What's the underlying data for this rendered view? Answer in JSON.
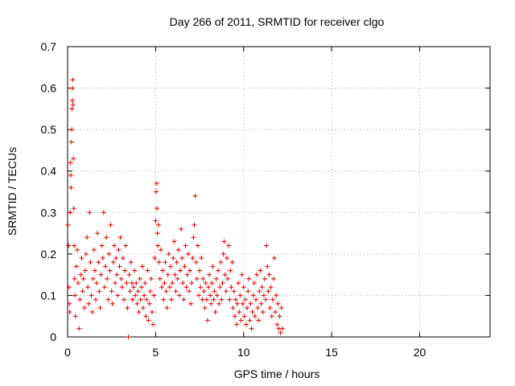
{
  "chart_data": {
    "type": "scatter",
    "title": "Day 266 of 2011, SRMTID for receiver clgo",
    "xlabel": "GPS time / hours",
    "ylabel": "SRMTID / TECUs",
    "xlim": [
      0,
      24
    ],
    "ylim": [
      0,
      0.7
    ],
    "xticks": [
      0,
      5,
      10,
      15,
      20
    ],
    "yticks": [
      0,
      0.1,
      0.2,
      0.3,
      0.4,
      0.5,
      0.6,
      0.7
    ],
    "grid": true,
    "colors": {
      "marker": "#e00000",
      "grid": "#a0a0a0",
      "axis": "#000000"
    },
    "marker": "plus",
    "series": [
      {
        "name": "SRMTID",
        "points": [
          [
            0.02,
            0.27
          ],
          [
            0.05,
            0.22
          ],
          [
            0.08,
            0.12
          ],
          [
            0.1,
            0.08
          ],
          [
            0.12,
            0.06
          ],
          [
            0.15,
            0.3
          ],
          [
            0.17,
            0.42
          ],
          [
            0.18,
            0.39
          ],
          [
            0.2,
            0.36
          ],
          [
            0.22,
            0.47
          ],
          [
            0.24,
            0.5
          ],
          [
            0.25,
            0.55
          ],
          [
            0.27,
            0.57
          ],
          [
            0.28,
            0.6
          ],
          [
            0.3,
            0.62
          ],
          [
            0.31,
            0.56
          ],
          [
            0.33,
            0.43
          ],
          [
            0.35,
            0.31
          ],
          [
            0.37,
            0.22
          ],
          [
            0.4,
            0.14
          ],
          [
            0.42,
            0.1
          ],
          [
            0.45,
            0.05
          ],
          [
            0.5,
            0.17
          ],
          [
            0.55,
            0.21
          ],
          [
            0.6,
            0.13
          ],
          [
            0.65,
            0.02
          ],
          [
            0.7,
            0.09
          ],
          [
            0.75,
            0.15
          ],
          [
            0.8,
            0.19
          ],
          [
            0.85,
            0.11
          ],
          [
            0.9,
            0.14
          ],
          [
            0.95,
            0.07
          ],
          [
            1.0,
            0.16
          ],
          [
            1.05,
            0.2
          ],
          [
            1.1,
            0.24
          ],
          [
            1.15,
            0.12
          ],
          [
            1.2,
            0.08
          ],
          [
            1.25,
            0.3
          ],
          [
            1.3,
            0.18
          ],
          [
            1.35,
            0.1
          ],
          [
            1.4,
            0.06
          ],
          [
            1.45,
            0.14
          ],
          [
            1.5,
            0.21
          ],
          [
            1.55,
            0.16
          ],
          [
            1.6,
            0.09
          ],
          [
            1.65,
            0.13
          ],
          [
            1.7,
            0.25
          ],
          [
            1.75,
            0.18
          ],
          [
            1.8,
            0.11
          ],
          [
            1.85,
            0.07
          ],
          [
            1.9,
            0.15
          ],
          [
            1.95,
            0.22
          ],
          [
            2.0,
            0.19
          ],
          [
            2.05,
            0.3
          ],
          [
            2.1,
            0.12
          ],
          [
            2.15,
            0.17
          ],
          [
            2.2,
            0.24
          ],
          [
            2.25,
            0.14
          ],
          [
            2.3,
            0.09
          ],
          [
            2.35,
            0.2
          ],
          [
            2.4,
            0.16
          ],
          [
            2.45,
            0.27
          ],
          [
            2.5,
            0.11
          ],
          [
            2.55,
            0.08
          ],
          [
            2.6,
            0.18
          ],
          [
            2.65,
            0.22
          ],
          [
            2.7,
            0.13
          ],
          [
            2.75,
            0.19
          ],
          [
            2.8,
            0.15
          ],
          [
            2.85,
            0.1
          ],
          [
            2.9,
            0.21
          ],
          [
            2.95,
            0.17
          ],
          [
            3.0,
            0.24
          ],
          [
            3.05,
            0.14
          ],
          [
            3.1,
            0.12
          ],
          [
            3.15,
            0.19
          ],
          [
            3.2,
            0.09
          ],
          [
            3.25,
            0.16
          ],
          [
            3.3,
            0.22
          ],
          [
            3.35,
            0.13
          ],
          [
            3.4,
            0.07
          ],
          [
            3.45,
            0.0
          ],
          [
            3.5,
            0.15
          ],
          [
            3.55,
            0.11
          ],
          [
            3.6,
            0.18
          ],
          [
            3.65,
            0.13
          ],
          [
            3.7,
            0.09
          ],
          [
            3.75,
            0.12
          ],
          [
            3.8,
            0.16
          ],
          [
            3.85,
            0.1
          ],
          [
            3.9,
            0.13
          ],
          [
            3.95,
            0.08
          ],
          [
            4.0,
            0.11
          ],
          [
            4.05,
            0.06
          ],
          [
            4.1,
            0.14
          ],
          [
            4.15,
            0.09
          ],
          [
            4.2,
            0.12
          ],
          [
            4.25,
            0.17
          ],
          [
            4.3,
            0.07
          ],
          [
            4.35,
            0.1
          ],
          [
            4.4,
            0.13
          ],
          [
            4.45,
            0.05
          ],
          [
            4.5,
            0.09
          ],
          [
            4.55,
            0.16
          ],
          [
            4.6,
            0.04
          ],
          [
            4.65,
            0.08
          ],
          [
            4.7,
            0.11
          ],
          [
            4.75,
            0.14
          ],
          [
            4.8,
            0.06
          ],
          [
            4.85,
            0.03
          ],
          [
            4.9,
            0.1
          ],
          [
            4.95,
            0.19
          ],
          [
            5.0,
            0.28
          ],
          [
            5.03,
            0.35
          ],
          [
            5.06,
            0.37
          ],
          [
            5.08,
            0.31
          ],
          [
            5.1,
            0.25
          ],
          [
            5.13,
            0.22
          ],
          [
            5.16,
            0.27
          ],
          [
            5.2,
            0.18
          ],
          [
            5.25,
            0.14
          ],
          [
            5.3,
            0.21
          ],
          [
            5.35,
            0.12
          ],
          [
            5.4,
            0.16
          ],
          [
            5.45,
            0.09
          ],
          [
            5.5,
            0.13
          ],
          [
            5.55,
            0.18
          ],
          [
            5.6,
            0.11
          ],
          [
            5.65,
            0.07
          ],
          [
            5.7,
            0.15
          ],
          [
            5.75,
            0.2
          ],
          [
            5.8,
            0.12
          ],
          [
            5.85,
            0.17
          ],
          [
            5.9,
            0.09
          ],
          [
            5.95,
            0.13
          ],
          [
            6.0,
            0.19
          ],
          [
            6.05,
            0.23
          ],
          [
            6.1,
            0.15
          ],
          [
            6.15,
            0.11
          ],
          [
            6.2,
            0.18
          ],
          [
            6.25,
            0.14
          ],
          [
            6.3,
            0.21
          ],
          [
            6.35,
            0.1
          ],
          [
            6.4,
            0.16
          ],
          [
            6.45,
            0.26
          ],
          [
            6.5,
            0.19
          ],
          [
            6.55,
            0.13
          ],
          [
            6.6,
            0.09
          ],
          [
            6.65,
            0.17
          ],
          [
            6.7,
            0.22
          ],
          [
            6.75,
            0.12
          ],
          [
            6.8,
            0.15
          ],
          [
            6.85,
            0.2
          ],
          [
            6.9,
            0.11
          ],
          [
            6.95,
            0.16
          ],
          [
            7.0,
            0.08
          ],
          [
            7.05,
            0.13
          ],
          [
            7.1,
            0.19
          ],
          [
            7.15,
            0.24
          ],
          [
            7.2,
            0.27
          ],
          [
            7.25,
            0.34
          ],
          [
            7.3,
            0.18
          ],
          [
            7.35,
            0.14
          ],
          [
            7.4,
            0.22
          ],
          [
            7.45,
            0.1
          ],
          [
            7.5,
            0.16
          ],
          [
            7.55,
            0.12
          ],
          [
            7.6,
            0.19
          ],
          [
            7.65,
            0.09
          ],
          [
            7.7,
            0.14
          ],
          [
            7.75,
            0.11
          ],
          [
            7.8,
            0.07
          ],
          [
            7.85,
            0.13
          ],
          [
            7.9,
            0.09
          ],
          [
            7.95,
            0.04
          ],
          [
            8.0,
            0.12
          ],
          [
            8.05,
            0.15
          ],
          [
            8.1,
            0.1
          ],
          [
            8.15,
            0.08
          ],
          [
            8.2,
            0.13
          ],
          [
            8.25,
            0.17
          ],
          [
            8.3,
            0.09
          ],
          [
            8.35,
            0.11
          ],
          [
            8.4,
            0.06
          ],
          [
            8.45,
            0.14
          ],
          [
            8.5,
            0.1
          ],
          [
            8.55,
            0.16
          ],
          [
            8.6,
            0.08
          ],
          [
            8.65,
            0.12
          ],
          [
            8.7,
            0.18
          ],
          [
            8.75,
            0.09
          ],
          [
            8.8,
            0.13
          ],
          [
            8.85,
            0.2
          ],
          [
            8.9,
            0.23
          ],
          [
            8.95,
            0.15
          ],
          [
            9.0,
            0.11
          ],
          [
            9.05,
            0.19
          ],
          [
            9.1,
            0.14
          ],
          [
            9.15,
            0.22
          ],
          [
            9.2,
            0.09
          ],
          [
            9.25,
            0.16
          ],
          [
            9.3,
            0.12
          ],
          [
            9.35,
            0.18
          ],
          [
            9.4,
            0.07
          ],
          [
            9.45,
            0.11
          ],
          [
            9.5,
            0.05
          ],
          [
            9.55,
            0.09
          ],
          [
            9.6,
            0.03
          ],
          [
            9.65,
            0.08
          ],
          [
            9.7,
            0.13
          ],
          [
            9.75,
            0.06
          ],
          [
            9.8,
            0.1
          ],
          [
            9.85,
            0.04
          ],
          [
            9.9,
            0.15
          ],
          [
            9.95,
            0.08
          ],
          [
            10.0,
            0.12
          ],
          [
            10.05,
            0.05
          ],
          [
            10.1,
            0.09
          ],
          [
            10.15,
            0.03
          ],
          [
            10.2,
            0.07
          ],
          [
            10.25,
            0.11
          ],
          [
            10.3,
            0.14
          ],
          [
            10.35,
            0.04
          ],
          [
            10.4,
            0.08
          ],
          [
            10.45,
            0.02
          ],
          [
            10.5,
            0.06
          ],
          [
            10.55,
            0.1
          ],
          [
            10.6,
            0.13
          ],
          [
            10.65,
            0.05
          ],
          [
            10.7,
            0.09
          ],
          [
            10.75,
            0.15
          ],
          [
            10.8,
            0.07
          ],
          [
            10.85,
            0.04
          ],
          [
            10.9,
            0.11
          ],
          [
            10.95,
            0.16
          ],
          [
            11.0,
            0.08
          ],
          [
            11.05,
            0.12
          ],
          [
            11.1,
            0.06
          ],
          [
            11.15,
            0.1
          ],
          [
            11.2,
            0.14
          ],
          [
            11.25,
            0.09
          ],
          [
            11.3,
            0.22
          ],
          [
            11.35,
            0.17
          ],
          [
            11.4,
            0.11
          ],
          [
            11.45,
            0.15
          ],
          [
            11.5,
            0.07
          ],
          [
            11.55,
            0.12
          ],
          [
            11.6,
            0.05
          ],
          [
            11.65,
            0.09
          ],
          [
            11.7,
            0.14
          ],
          [
            11.75,
            0.19
          ],
          [
            11.8,
            0.06
          ],
          [
            11.85,
            0.1
          ],
          [
            11.9,
            0.03
          ],
          [
            11.95,
            0.08
          ],
          [
            12.0,
            0.02
          ],
          [
            12.05,
            0.05
          ],
          [
            12.1,
            0.01
          ],
          [
            12.15,
            0.07
          ],
          [
            12.2,
            0.02
          ]
        ]
      }
    ]
  }
}
